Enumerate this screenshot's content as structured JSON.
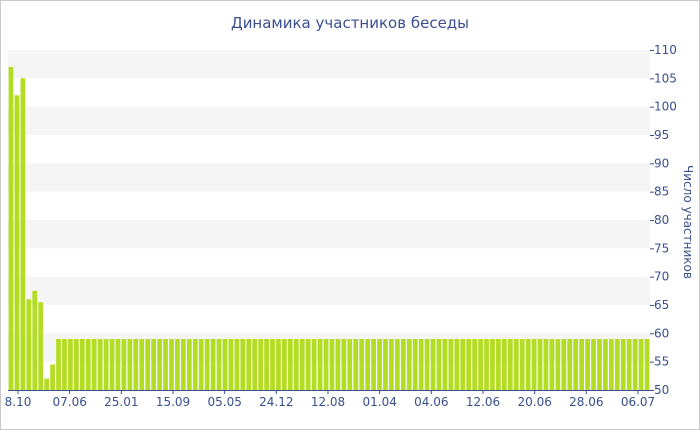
{
  "chart_data": {
    "type": "bar",
    "title": "Динамика участников беседы",
    "xlabel": "",
    "ylabel": "Число участников",
    "ylim": [
      50,
      110
    ],
    "yticks": [
      50,
      55,
      60,
      65,
      70,
      75,
      80,
      85,
      90,
      95,
      100,
      105,
      110
    ],
    "xtick_labels": [
      "8.10",
      "07.06",
      "25.01",
      "15.09",
      "05.05",
      "24.12",
      "12.08",
      "01.04",
      "04.06",
      "12.06",
      "20.06",
      "28.06",
      "06.07"
    ],
    "grid": "alternating horizontal bands",
    "legend": "none",
    "bar_color": "#b3dd22",
    "band_color": "#f5f5f5",
    "text_color": "#3a4f8f",
    "series": [
      {
        "values": [
          107,
          102,
          105,
          66,
          67.5,
          65.5,
          52,
          54.5,
          59,
          59,
          59,
          59,
          59,
          59,
          59,
          59,
          59,
          59,
          59,
          59,
          59,
          59,
          59,
          59,
          59,
          59,
          59,
          59,
          59,
          59,
          59,
          59,
          59,
          59,
          59,
          59,
          59,
          59,
          59,
          59,
          59,
          59,
          59,
          59,
          59,
          59,
          59,
          59,
          59,
          59,
          59,
          59,
          59,
          59,
          59,
          59,
          59,
          59,
          59,
          59,
          59,
          59,
          59,
          59,
          59,
          59,
          59,
          59,
          59,
          59,
          59,
          59,
          59,
          59,
          59,
          59,
          59,
          59,
          59,
          59,
          59,
          59,
          59,
          59,
          59,
          59,
          59,
          59,
          59,
          59,
          59,
          59,
          59,
          59,
          59,
          59,
          59,
          59,
          59,
          59,
          59,
          59,
          59,
          59,
          59,
          59,
          59,
          59
        ]
      }
    ]
  }
}
